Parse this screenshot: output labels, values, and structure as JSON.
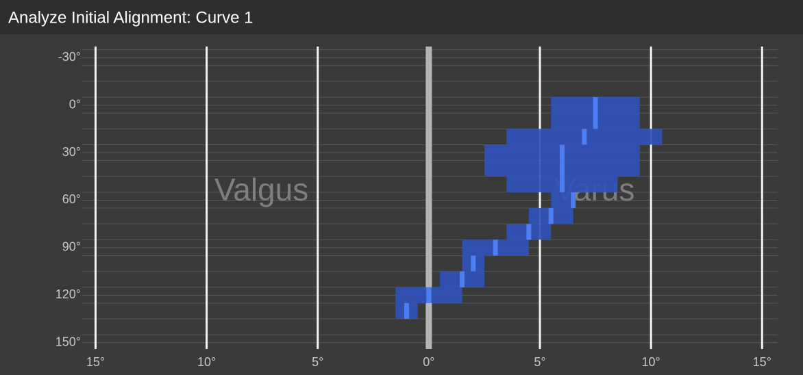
{
  "chart_data": {
    "type": "range",
    "title": "Analyze Initial Alignment: Curve 1",
    "annotations": [
      "Valgus",
      "Varus"
    ],
    "flexion": [
      0,
      10,
      20,
      30,
      40,
      50,
      60,
      70,
      80,
      90,
      100,
      110,
      120,
      130
    ],
    "min": [
      5.5,
      5.5,
      3.5,
      2.5,
      2.5,
      3.5,
      5.5,
      4.5,
      3.5,
      1.5,
      1.5,
      0.5,
      -1.5,
      -1.5
    ],
    "max": [
      9.5,
      9.5,
      10.5,
      9.5,
      9.5,
      8.5,
      6.5,
      6.5,
      5.5,
      4.5,
      2.5,
      2.5,
      1.5,
      -0.5
    ],
    "mean": [
      7.5,
      7.5,
      7.0,
      6.0,
      6.0,
      6.0,
      6.5,
      5.5,
      4.5,
      3.0,
      2.0,
      1.5,
      0.0,
      -1.0
    ],
    "color": "#3051b8",
    "mean_color": "#4d7ff2",
    "xlim": [
      -15.6,
      15.7
    ],
    "xticks": [
      {
        "value": -15,
        "label": "15°"
      },
      {
        "value": -10,
        "label": "10°"
      },
      {
        "value": -5,
        "label": "5°"
      },
      {
        "value": 0,
        "label": "0°"
      },
      {
        "value": 5,
        "label": "5°"
      },
      {
        "value": 10,
        "label": "10°"
      },
      {
        "value": 15,
        "label": "15°"
      }
    ],
    "ylim": [
      -37,
      154
    ],
    "yticks": [
      {
        "value": -30,
        "label": "-30°"
      },
      {
        "value": 0,
        "label": "0°"
      },
      {
        "value": 30,
        "label": "30°"
      },
      {
        "value": 60,
        "label": "60°"
      },
      {
        "value": 90,
        "label": "90°"
      },
      {
        "value": 120,
        "label": "120°"
      },
      {
        "value": 150,
        "label": "150°"
      }
    ],
    "yminor": [
      -35,
      -25,
      -15,
      -5,
      5,
      15,
      25,
      35,
      45,
      55,
      65,
      75,
      85,
      95,
      105,
      115,
      125,
      135,
      145
    ],
    "grid": true
  }
}
